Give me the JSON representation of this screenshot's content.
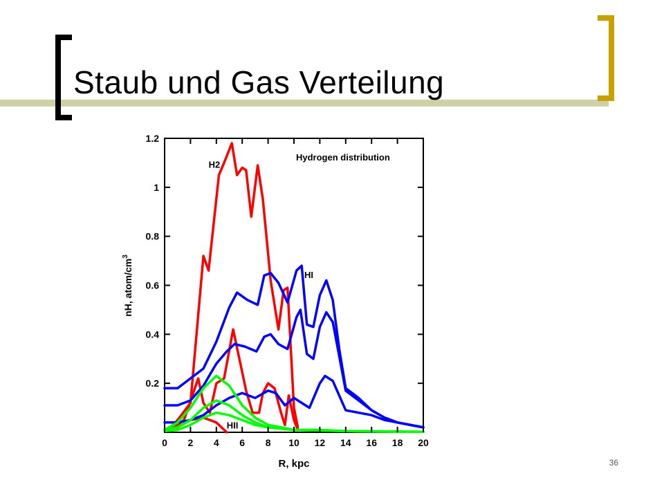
{
  "slide": {
    "title": "Staub und Gas Verteilung",
    "page_number": "36",
    "accent_colors": {
      "left_bracket": "#000000",
      "right_bracket": "#c8a000",
      "title_band": "#cfcfa8"
    }
  },
  "chart_data": {
    "type": "line",
    "title": "Hydrogen distribution",
    "xlabel": "R, kpc",
    "ylabel": "nH, atom/cm",
    "ylabel_superscript": "3",
    "xlim": [
      0,
      20
    ],
    "ylim": [
      0,
      1.2
    ],
    "x_ticks": [
      0,
      2,
      4,
      6,
      8,
      10,
      12,
      14,
      16,
      18,
      20
    ],
    "y_ticks": [
      0.2,
      0.4,
      0.6,
      0.8,
      1,
      1.2
    ],
    "grid": false,
    "annotations": [
      {
        "text": "H2",
        "x": 3.4,
        "y": 1.08
      },
      {
        "text": "HI",
        "x": 10.8,
        "y": 0.63
      },
      {
        "text": "HII",
        "x": 4.8,
        "y": 0.015
      }
    ],
    "series": [
      {
        "group": "H2",
        "color": "#ff0000",
        "points": [
          [
            0.5,
            0.02
          ],
          [
            1,
            0.05
          ],
          [
            2,
            0.12
          ],
          [
            3,
            0.72
          ],
          [
            3.4,
            0.66
          ],
          [
            4.2,
            1.05
          ],
          [
            4.6,
            1.1
          ],
          [
            5.2,
            1.18
          ],
          [
            5.6,
            1.05
          ],
          [
            6,
            1.08
          ],
          [
            6.3,
            1.07
          ],
          [
            6.7,
            0.88
          ],
          [
            7.2,
            1.09
          ],
          [
            7.6,
            0.95
          ],
          [
            8.2,
            0.62
          ],
          [
            8.8,
            0.42
          ],
          [
            9.2,
            0.58
          ],
          [
            9.5,
            0.59
          ],
          [
            10,
            0.1
          ],
          [
            10.3,
            0.02
          ]
        ]
      },
      {
        "group": "H2",
        "color": "#ff0000",
        "points": [
          [
            0.5,
            0.01
          ],
          [
            1.5,
            0.05
          ],
          [
            2.6,
            0.22
          ],
          [
            3,
            0.12
          ],
          [
            3.5,
            0.08
          ],
          [
            4,
            0.2
          ],
          [
            4.6,
            0.22
          ],
          [
            5.3,
            0.42
          ],
          [
            5.7,
            0.32
          ],
          [
            6.3,
            0.17
          ],
          [
            6.8,
            0.08
          ],
          [
            7.3,
            0.08
          ],
          [
            7.6,
            0.16
          ],
          [
            8,
            0.2
          ],
          [
            8.5,
            0.18
          ],
          [
            9,
            0.08
          ],
          [
            9.3,
            0.03
          ],
          [
            9.6,
            0.15
          ],
          [
            10,
            0.05
          ],
          [
            10.3,
            0.01
          ]
        ]
      },
      {
        "group": "H2",
        "color": "#ff0000",
        "points": [
          [
            0.5,
            0.01
          ],
          [
            1,
            0.02
          ],
          [
            2,
            0.05
          ],
          [
            3,
            0.06
          ],
          [
            4,
            0.04
          ],
          [
            4.8,
            0.0
          ]
        ]
      },
      {
        "group": "HI",
        "color": "#0000ff",
        "points": [
          [
            0,
            0.18
          ],
          [
            1,
            0.18
          ],
          [
            2,
            0.22
          ],
          [
            3,
            0.26
          ],
          [
            4,
            0.37
          ],
          [
            5,
            0.51
          ],
          [
            5.6,
            0.57
          ],
          [
            6.4,
            0.54
          ],
          [
            7.2,
            0.52
          ],
          [
            7.7,
            0.64
          ],
          [
            8.2,
            0.65
          ],
          [
            8.8,
            0.61
          ],
          [
            9.5,
            0.53
          ],
          [
            10.2,
            0.66
          ],
          [
            10.6,
            0.68
          ],
          [
            11,
            0.44
          ],
          [
            11.5,
            0.43
          ],
          [
            12,
            0.56
          ],
          [
            12.5,
            0.62
          ],
          [
            13,
            0.54
          ],
          [
            13.5,
            0.34
          ],
          [
            14,
            0.18
          ],
          [
            15,
            0.14
          ],
          [
            16,
            0.09
          ],
          [
            17,
            0.06
          ],
          [
            18,
            0.04
          ],
          [
            19,
            0.03
          ],
          [
            20,
            0.02
          ]
        ]
      },
      {
        "group": "HI",
        "color": "#0000ff",
        "points": [
          [
            0,
            0.11
          ],
          [
            1,
            0.11
          ],
          [
            2,
            0.13
          ],
          [
            3,
            0.19
          ],
          [
            4,
            0.28
          ],
          [
            4.8,
            0.33
          ],
          [
            5.4,
            0.36
          ],
          [
            6.2,
            0.35
          ],
          [
            7.1,
            0.33
          ],
          [
            7.7,
            0.39
          ],
          [
            8.2,
            0.4
          ],
          [
            8.8,
            0.36
          ],
          [
            9.5,
            0.34
          ],
          [
            10.2,
            0.47
          ],
          [
            10.5,
            0.5
          ],
          [
            11,
            0.32
          ],
          [
            11.5,
            0.3
          ],
          [
            12,
            0.43
          ],
          [
            12.5,
            0.49
          ],
          [
            13,
            0.45
          ],
          [
            13.5,
            0.31
          ],
          [
            14,
            0.17
          ],
          [
            15,
            0.13
          ],
          [
            16,
            0.09
          ],
          [
            17,
            0.06
          ],
          [
            18,
            0.04
          ],
          [
            19,
            0.03
          ],
          [
            20,
            0.02
          ]
        ]
      },
      {
        "group": "HI",
        "color": "#0000ff",
        "points": [
          [
            0,
            0.04
          ],
          [
            1,
            0.04
          ],
          [
            2,
            0.05
          ],
          [
            3,
            0.07
          ],
          [
            4,
            0.11
          ],
          [
            5,
            0.14
          ],
          [
            6,
            0.16
          ],
          [
            7,
            0.14
          ],
          [
            8,
            0.17
          ],
          [
            8.6,
            0.16
          ],
          [
            9.3,
            0.11
          ],
          [
            10,
            0.14
          ],
          [
            10.6,
            0.12
          ],
          [
            11.2,
            0.1
          ],
          [
            12,
            0.2
          ],
          [
            12.4,
            0.23
          ],
          [
            13,
            0.21
          ],
          [
            13.5,
            0.15
          ],
          [
            14,
            0.09
          ],
          [
            15,
            0.08
          ],
          [
            16,
            0.07
          ],
          [
            17,
            0.05
          ],
          [
            18,
            0.04
          ],
          [
            19,
            0.03
          ],
          [
            20,
            0.02
          ]
        ]
      },
      {
        "group": "HII",
        "color": "#00ff00",
        "points": [
          [
            0,
            0.01
          ],
          [
            1,
            0.04
          ],
          [
            2,
            0.1
          ],
          [
            3,
            0.18
          ],
          [
            4,
            0.23
          ],
          [
            5,
            0.19
          ],
          [
            6,
            0.11
          ],
          [
            7,
            0.06
          ],
          [
            8,
            0.03
          ],
          [
            9,
            0.02
          ],
          [
            10,
            0.01
          ],
          [
            12,
            0.01
          ],
          [
            14,
            0.005
          ],
          [
            16,
            0.003
          ],
          [
            18,
            0.002
          ],
          [
            20,
            0.002
          ]
        ]
      },
      {
        "group": "HII",
        "color": "#00ff00",
        "points": [
          [
            0,
            0.01
          ],
          [
            1,
            0.02
          ],
          [
            2,
            0.05
          ],
          [
            3,
            0.1
          ],
          [
            4,
            0.13
          ],
          [
            5,
            0.11
          ],
          [
            6,
            0.07
          ],
          [
            7,
            0.04
          ],
          [
            8,
            0.02
          ],
          [
            10,
            0.01
          ],
          [
            14,
            0.005
          ],
          [
            20,
            0.002
          ]
        ]
      },
      {
        "group": "HII",
        "color": "#00ff00",
        "points": [
          [
            0,
            0.005
          ],
          [
            1,
            0.01
          ],
          [
            2,
            0.03
          ],
          [
            3,
            0.06
          ],
          [
            4,
            0.08
          ],
          [
            5,
            0.07
          ],
          [
            6,
            0.05
          ],
          [
            7,
            0.03
          ],
          [
            8,
            0.02
          ],
          [
            10,
            0.01
          ],
          [
            14,
            0.005
          ],
          [
            20,
            0.002
          ]
        ]
      }
    ]
  }
}
